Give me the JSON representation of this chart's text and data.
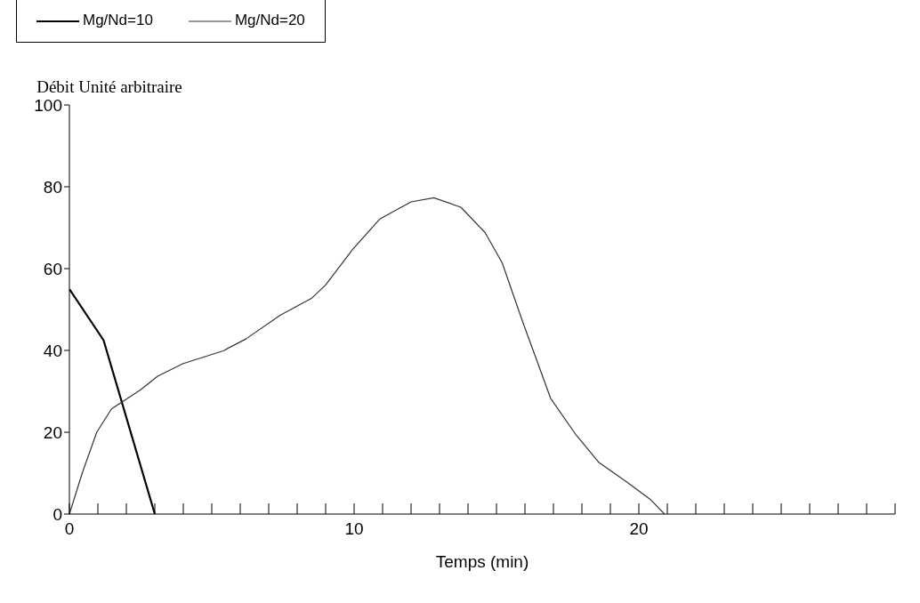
{
  "chart_data": {
    "type": "line",
    "xlabel": "Temps (min)",
    "ylabel": "Débit  Unité arbitraire",
    "xlim": [
      0,
      29
    ],
    "ylim": [
      0,
      100
    ],
    "yticks": [
      0,
      20,
      40,
      60,
      80,
      100
    ],
    "xticks": [
      0,
      {
        "value": 1,
        "label": null
      },
      {
        "value": 2,
        "label": null
      },
      {
        "value": 3,
        "label": null
      },
      {
        "value": 4,
        "label": null
      },
      {
        "value": 5,
        "label": null
      },
      {
        "value": 6,
        "label": null
      },
      {
        "value": 7,
        "label": null
      },
      {
        "value": 8,
        "label": null
      },
      {
        "value": 9,
        "label": null
      },
      10,
      {
        "value": 11,
        "label": null
      },
      {
        "value": 12,
        "label": null
      },
      {
        "value": 13,
        "label": null
      },
      {
        "value": 14,
        "label": null
      },
      {
        "value": 15,
        "label": null
      },
      {
        "value": 16,
        "label": null
      },
      {
        "value": 17,
        "label": null
      },
      {
        "value": 18,
        "label": null
      },
      {
        "value": 19,
        "label": null
      },
      20,
      {
        "value": 21,
        "label": null
      },
      {
        "value": 22,
        "label": null
      },
      {
        "value": 23,
        "label": null
      },
      {
        "value": 24,
        "label": null
      },
      {
        "value": 25,
        "label": null
      },
      {
        "value": 26,
        "label": null
      },
      {
        "value": 27,
        "label": null
      },
      {
        "value": 28,
        "label": null
      },
      {
        "value": 29,
        "label": null
      }
    ],
    "grid": false,
    "legend": "top",
    "marker": "none",
    "line_style": "solid",
    "series": [
      {
        "name": "Mg/Nd=10",
        "color": "#000000",
        "x": [
          0,
          1.2,
          3
        ],
        "values": [
          55,
          42.5,
          0
        ]
      },
      {
        "name": "Mg/Nd=20",
        "color": "#333333",
        "x": [
          0,
          0.45,
          0.96,
          1.48,
          2.5,
          3.1,
          4,
          5.4,
          6.2,
          7.4,
          8.5,
          9,
          9.95,
          10.9,
          12,
          12.8,
          13.75,
          14.6,
          15.2,
          15.9,
          16.9,
          17.8,
          18.6,
          19.6,
          20.4,
          20.9
        ],
        "values": [
          0,
          10,
          20,
          25.7,
          30.4,
          33.7,
          36.8,
          39.9,
          42.8,
          48.6,
          52.7,
          56,
          64.7,
          72.1,
          76.3,
          77.3,
          75,
          68.8,
          61.4,
          47.4,
          28.3,
          19.3,
          12.6,
          7.7,
          3.6,
          0
        ]
      }
    ]
  }
}
